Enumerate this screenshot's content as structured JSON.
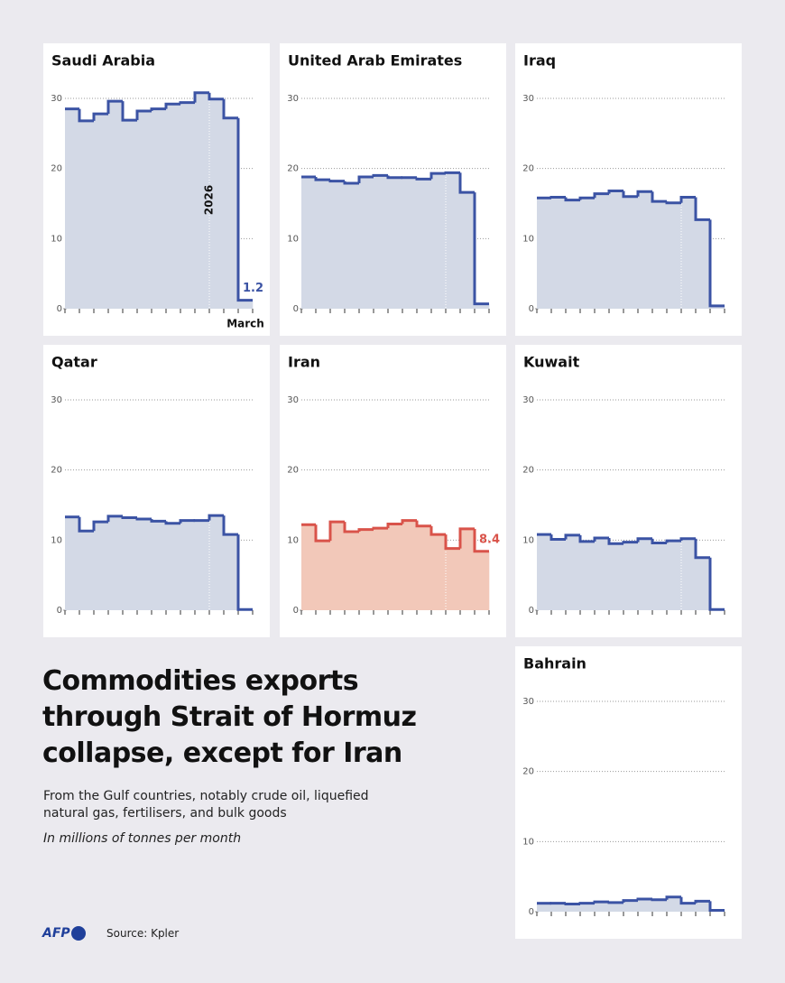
{
  "title": [
    "Commodities exports",
    "through Strait of Hormuz",
    "collapse, except for Iran"
  ],
  "subtitle": [
    "From the Gulf countries, notably crude oil, liquefied",
    "natural gas, fertilisers, and bulk goods"
  ],
  "unit_note": "In millions of tonnes per month",
  "logo": "AFP",
  "source": "Source: Kpler",
  "chart_data": [
    {
      "type": "step",
      "title": "Saudi Arabia",
      "categories": [
        null,
        null,
        null,
        null,
        null,
        null,
        null,
        null,
        null,
        null,
        null,
        null,
        "March"
      ],
      "values": [
        28.5,
        26.8,
        27.8,
        29.6,
        26.9,
        28.2,
        28.5,
        29.2,
        29.4,
        30.8,
        29.9,
        27.2,
        1.2
      ],
      "color": "#3b53a4",
      "fill": "#d3d9e6",
      "ylim": [
        0,
        30
      ],
      "yticks": [
        0,
        10,
        20,
        30
      ],
      "grid": true,
      "divider_index": 10,
      "annotation": "2026",
      "label_last": true
    },
    {
      "type": "step",
      "title": "United Arab Emirates",
      "values": [
        18.8,
        18.4,
        18.2,
        17.9,
        18.8,
        19.0,
        18.7,
        18.7,
        18.5,
        19.3,
        19.4,
        16.6,
        0.7
      ],
      "color": "#3b53a4",
      "fill": "#d3d9e6",
      "ylim": [
        0,
        30
      ],
      "yticks": [
        0,
        10,
        20,
        30
      ],
      "grid": true,
      "divider_index": 10
    },
    {
      "type": "step",
      "title": "Iraq",
      "values": [
        15.8,
        15.9,
        15.5,
        15.8,
        16.4,
        16.8,
        16.0,
        16.7,
        15.3,
        15.1,
        15.9,
        12.7,
        0.4
      ],
      "color": "#3b53a4",
      "fill": "#d3d9e6",
      "ylim": [
        0,
        30
      ],
      "yticks": [
        0,
        10,
        20,
        30
      ],
      "grid": true,
      "divider_index": 10
    },
    {
      "type": "step",
      "title": "Qatar",
      "values": [
        13.3,
        11.3,
        12.6,
        13.4,
        13.2,
        13.0,
        12.7,
        12.4,
        12.8,
        12.8,
        13.5,
        10.8,
        0.1
      ],
      "color": "#3b53a4",
      "fill": "#d3d9e6",
      "ylim": [
        0,
        30
      ],
      "yticks": [
        0,
        10,
        20,
        30
      ],
      "grid": true,
      "divider_index": 10
    },
    {
      "type": "step",
      "title": "Iran",
      "values": [
        12.2,
        9.9,
        12.6,
        11.2,
        11.5,
        11.7,
        12.3,
        12.8,
        12.0,
        10.8,
        8.8,
        11.6,
        8.4
      ],
      "color": "#d9534a",
      "fill": "#f2c8b9",
      "ylim": [
        0,
        30
      ],
      "yticks": [
        0,
        10,
        20,
        30
      ],
      "grid": true,
      "divider_index": 10,
      "label_last": true
    },
    {
      "type": "step",
      "title": "Kuwait",
      "values": [
        10.8,
        10.1,
        10.7,
        9.8,
        10.3,
        9.5,
        9.7,
        10.2,
        9.6,
        9.9,
        10.2,
        7.5,
        0.1
      ],
      "color": "#3b53a4",
      "fill": "#d3d9e6",
      "ylim": [
        0,
        30
      ],
      "yticks": [
        0,
        10,
        20,
        30
      ],
      "grid": true,
      "divider_index": 10
    },
    {
      "type": "step",
      "title": "Bahrain",
      "values": [
        1.2,
        1.2,
        1.1,
        1.2,
        1.4,
        1.3,
        1.6,
        1.8,
        1.7,
        2.1,
        1.2,
        1.5,
        0.2
      ],
      "color": "#3b53a4",
      "fill": "#d3d9e6",
      "ylim": [
        0,
        30
      ],
      "yticks": [
        0,
        10,
        20,
        30
      ],
      "grid": true
    }
  ]
}
